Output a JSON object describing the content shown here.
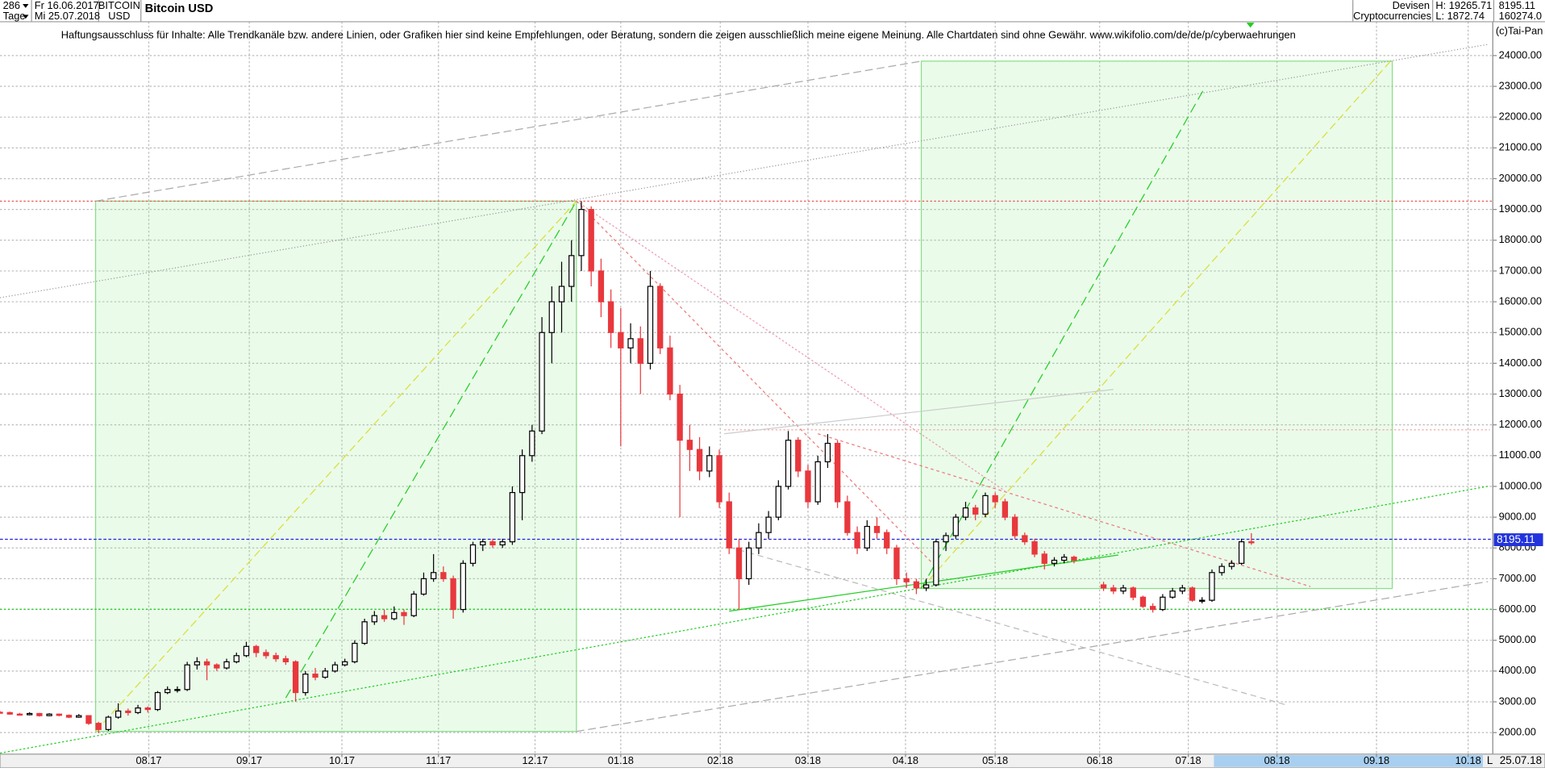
{
  "header": {
    "bars": "286",
    "period": "Tage",
    "from": "Fr 16.06.2017",
    "to": "Mi 25.07.2018",
    "symbol": "BITCOIN",
    "currency": "USD",
    "market": "Devisen",
    "group": "Cryptocurrencies",
    "high": "H: 19265.71",
    "low": "L: 1872.74",
    "volume": "160274.0",
    "end_date": "25.07.18",
    "scale_mode": "L"
  },
  "disclaimer": "Haftungsausschluss für Inhalte: Alle Trendkanäle bzw. andere Linien, oder Grafiken hier sind keine Empfehlungen, oder Beratung, sondern die zeigen ausschließlich meine eigene Meinung. Alle Chartdaten sind ohne Gewähr.  www.wikifolio.com/de/de/p/cyberwaehrungen",
  "copyright": "(c)Tai-Pan",
  "chart_data": {
    "type": "candlestick",
    "title": "Bitcoin USD",
    "up_color": "#ffffff",
    "down_color": "#e8383d",
    "x": [
      0,
      1,
      2,
      3,
      4,
      5,
      6,
      7,
      8,
      9,
      10,
      11,
      12,
      13,
      14,
      15,
      16,
      17,
      18,
      19,
      20,
      21,
      22,
      23,
      24,
      25,
      26,
      27,
      28,
      29,
      30,
      31,
      32,
      33,
      34,
      35,
      36,
      37,
      38,
      39,
      40,
      41,
      42,
      43,
      44,
      45,
      46,
      47,
      48,
      49,
      50,
      51,
      52,
      53,
      54,
      55,
      56,
      57,
      58,
      59,
      60,
      61,
      62,
      63,
      64,
      65,
      66,
      67,
      68,
      69,
      70,
      71,
      72,
      73,
      74,
      75,
      76,
      77,
      78,
      79,
      80,
      81,
      82,
      83,
      84,
      85,
      86,
      87,
      88,
      89,
      90,
      91,
      92,
      93,
      94,
      95,
      96,
      97,
      98,
      99,
      100,
      101,
      102,
      103,
      104,
      105,
      106,
      107,
      108,
      109,
      112,
      113,
      114,
      115,
      116,
      117,
      118,
      119,
      120,
      121,
      122,
      123,
      124,
      125,
      126,
      127
    ],
    "ohlc": [
      [
        2660,
        2700,
        2620,
        2650
      ],
      [
        2650,
        2680,
        2580,
        2600
      ],
      [
        2600,
        2640,
        2550,
        2580
      ],
      [
        2580,
        2660,
        2560,
        2620
      ],
      [
        2620,
        2640,
        2520,
        2550
      ],
      [
        2550,
        2630,
        2530,
        2600
      ],
      [
        2600,
        2620,
        2530,
        2560
      ],
      [
        2560,
        2590,
        2470,
        2500
      ],
      [
        2500,
        2600,
        2480,
        2550
      ],
      [
        2550,
        2560,
        2250,
        2300
      ],
      [
        2300,
        2350,
        1980,
        2100
      ],
      [
        2100,
        2550,
        2050,
        2500
      ],
      [
        2500,
        2950,
        2450,
        2700
      ],
      [
        2700,
        2780,
        2550,
        2650
      ],
      [
        2650,
        2900,
        2600,
        2800
      ],
      [
        2800,
        2850,
        2650,
        2750
      ],
      [
        2750,
        3350,
        2700,
        3300
      ],
      [
        3300,
        3500,
        3250,
        3400
      ],
      [
        3400,
        3500,
        3300,
        3400
      ],
      [
        3400,
        4300,
        3350,
        4200
      ],
      [
        4200,
        4450,
        4050,
        4300
      ],
      [
        4300,
        4400,
        3700,
        4200
      ],
      [
        4200,
        4250,
        4000,
        4100
      ],
      [
        4100,
        4400,
        4050,
        4300
      ],
      [
        4300,
        4600,
        4250,
        4500
      ],
      [
        4500,
        4950,
        4450,
        4800
      ],
      [
        4800,
        4850,
        4450,
        4600
      ],
      [
        4600,
        4700,
        4400,
        4500
      ],
      [
        4500,
        4600,
        4300,
        4400
      ],
      [
        4400,
        4500,
        4200,
        4300
      ],
      [
        4300,
        4350,
        3000,
        3300
      ],
      [
        3300,
        4000,
        3200,
        3900
      ],
      [
        3900,
        4100,
        3700,
        3800
      ],
      [
        3800,
        4100,
        3750,
        4000
      ],
      [
        4000,
        4300,
        3950,
        4200
      ],
      [
        4200,
        4400,
        4150,
        4300
      ],
      [
        4300,
        5000,
        4250,
        4900
      ],
      [
        4900,
        5700,
        4850,
        5600
      ],
      [
        5600,
        5950,
        5500,
        5800
      ],
      [
        5800,
        6000,
        5600,
        5700
      ],
      [
        5700,
        6100,
        5650,
        5900
      ],
      [
        5900,
        6000,
        5500,
        5800
      ],
      [
        5800,
        6600,
        5750,
        6500
      ],
      [
        6500,
        7200,
        6450,
        7000
      ],
      [
        7000,
        7800,
        6900,
        7200
      ],
      [
        7200,
        7400,
        6900,
        7000
      ],
      [
        7000,
        7100,
        5700,
        6000
      ],
      [
        6000,
        7600,
        5900,
        7500
      ],
      [
        7500,
        8200,
        7400,
        8100
      ],
      [
        8100,
        8300,
        7900,
        8200
      ],
      [
        8200,
        8300,
        8000,
        8100
      ],
      [
        8100,
        8300,
        8000,
        8200
      ],
      [
        8200,
        10000,
        8100,
        9800
      ],
      [
        9800,
        11200,
        8900,
        11000
      ],
      [
        11000,
        12000,
        10800,
        11800
      ],
      [
        11800,
        15500,
        11700,
        15000
      ],
      [
        15000,
        16500,
        14000,
        16000
      ],
      [
        16000,
        17300,
        15000,
        16500
      ],
      [
        16500,
        18000,
        16000,
        17500
      ],
      [
        17500,
        19266,
        17000,
        19000
      ],
      [
        19000,
        19100,
        16500,
        17000
      ],
      [
        17000,
        17400,
        15500,
        16000
      ],
      [
        16000,
        16400,
        14500,
        15000
      ],
      [
        15000,
        15800,
        11300,
        14500
      ],
      [
        14500,
        15300,
        14000,
        14800
      ],
      [
        14800,
        15200,
        13000,
        14000
      ],
      [
        14000,
        17000,
        13800,
        16500
      ],
      [
        16500,
        16600,
        14300,
        14500
      ],
      [
        14500,
        14900,
        12800,
        13000
      ],
      [
        13000,
        13300,
        9000,
        11500
      ],
      [
        11500,
        12000,
        10500,
        11200
      ],
      [
        11200,
        11600,
        10200,
        10500
      ],
      [
        10500,
        11300,
        10300,
        11000
      ],
      [
        11000,
        11200,
        9300,
        9500
      ],
      [
        9500,
        9800,
        7800,
        8000
      ],
      [
        8000,
        8300,
        6000,
        7000
      ],
      [
        7000,
        8200,
        6800,
        8000
      ],
      [
        8000,
        8800,
        7800,
        8500
      ],
      [
        8500,
        9200,
        8300,
        9000
      ],
      [
        9000,
        10200,
        8900,
        10000
      ],
      [
        10000,
        11800,
        9900,
        11500
      ],
      [
        11500,
        11600,
        10300,
        10500
      ],
      [
        10500,
        10700,
        9300,
        9500
      ],
      [
        9500,
        11000,
        9400,
        10800
      ],
      [
        10800,
        11700,
        10600,
        11400
      ],
      [
        11400,
        11500,
        9300,
        9500
      ],
      [
        9500,
        9700,
        8400,
        8500
      ],
      [
        8500,
        8700,
        7800,
        8000
      ],
      [
        8000,
        8900,
        7900,
        8700
      ],
      [
        8700,
        9000,
        8300,
        8500
      ],
      [
        8500,
        8600,
        7800,
        8000
      ],
      [
        8000,
        8100,
        6800,
        7000
      ],
      [
        7000,
        7200,
        6700,
        6900
      ],
      [
        6900,
        7000,
        6500,
        6700
      ],
      [
        6700,
        7000,
        6600,
        6800
      ],
      [
        6800,
        8300,
        6750,
        8200
      ],
      [
        8200,
        8500,
        7900,
        8400
      ],
      [
        8400,
        9100,
        8300,
        9000
      ],
      [
        9000,
        9500,
        8900,
        9300
      ],
      [
        9300,
        9400,
        8900,
        9100
      ],
      [
        9100,
        9800,
        9000,
        9700
      ],
      [
        9700,
        9800,
        9300,
        9500
      ],
      [
        9500,
        9600,
        8900,
        9000
      ],
      [
        9000,
        9100,
        8300,
        8400
      ],
      [
        8400,
        8500,
        8100,
        8200
      ],
      [
        8200,
        8300,
        7700,
        7800
      ],
      [
        7800,
        7900,
        7300,
        7500
      ],
      [
        7500,
        7700,
        7400,
        7600
      ],
      [
        7600,
        7800,
        7500,
        7700
      ],
      [
        7700,
        7750,
        7500,
        7600
      ],
      [
        6800,
        6900,
        6600,
        6700
      ],
      [
        6700,
        6800,
        6500,
        6600
      ],
      [
        6600,
        6800,
        6500,
        6700
      ],
      [
        6700,
        6750,
        6300,
        6400
      ],
      [
        6400,
        6450,
        6050,
        6100
      ],
      [
        6100,
        6200,
        5900,
        6000
      ],
      [
        6000,
        6500,
        5950,
        6400
      ],
      [
        6400,
        6700,
        6350,
        6600
      ],
      [
        6600,
        6800,
        6500,
        6700
      ],
      [
        6700,
        6750,
        6250,
        6300
      ],
      [
        6300,
        6400,
        6200,
        6300
      ],
      [
        6300,
        7300,
        6250,
        7200
      ],
      [
        7200,
        7500,
        7100,
        7400
      ],
      [
        7400,
        7600,
        7300,
        7500
      ],
      [
        7500,
        8300,
        7450,
        8200
      ],
      [
        8200,
        8480,
        8100,
        8195.11
      ]
    ],
    "xlim": [
      0,
      151.5
    ],
    "ylim": [
      1300,
      25100
    ],
    "yticks": [
      {
        "value": 2000,
        "label": "2000.00"
      },
      {
        "value": 3000,
        "label": "3000.00"
      },
      {
        "value": 4000,
        "label": "4000.00"
      },
      {
        "value": 5000,
        "label": "5000.00"
      },
      {
        "value": 6000,
        "label": "6000.00"
      },
      {
        "value": 7000,
        "label": "7000.00"
      },
      {
        "value": 8000,
        "label": "8000.00"
      },
      {
        "value": 9000,
        "label": "9000.00"
      },
      {
        "value": 10000,
        "label": "10000.00"
      },
      {
        "value": 11000,
        "label": "11000.00"
      },
      {
        "value": 12000,
        "label": "12000.00"
      },
      {
        "value": 13000,
        "label": "13000.00"
      },
      {
        "value": 14000,
        "label": "14000.00"
      },
      {
        "value": 15000,
        "label": "15000.00"
      },
      {
        "value": 16000,
        "label": "16000.00"
      },
      {
        "value": 17000,
        "label": "17000.00"
      },
      {
        "value": 18000,
        "label": "18000.00"
      },
      {
        "value": 19000,
        "label": "19000.00"
      },
      {
        "value": 20000,
        "label": "20000.00"
      },
      {
        "value": 21000,
        "label": "21000.00"
      },
      {
        "value": 22000,
        "label": "22000.00"
      },
      {
        "value": 23000,
        "label": "23000.00"
      },
      {
        "value": 24000,
        "label": "24000.00"
      }
    ],
    "xticks": [
      {
        "value": 15.1,
        "label": "08.17"
      },
      {
        "value": 25.3,
        "label": "09.17"
      },
      {
        "value": 34.7,
        "label": "10.17"
      },
      {
        "value": 44.5,
        "label": "11.17"
      },
      {
        "value": 54.3,
        "label": "12.17"
      },
      {
        "value": 63,
        "label": "01.18"
      },
      {
        "value": 73.1,
        "label": "02.18"
      },
      {
        "value": 82,
        "label": "03.18"
      },
      {
        "value": 91.9,
        "label": "04.18"
      },
      {
        "value": 101,
        "label": "05.18"
      },
      {
        "value": 111.6,
        "label": "06.18"
      },
      {
        "value": 120.6,
        "label": "07.18"
      },
      {
        "value": 129.6,
        "label": "08.18"
      },
      {
        "value": 139.7,
        "label": "09.18"
      },
      {
        "value": 149,
        "label": "10.18"
      }
    ],
    "grid": true
  }
}
